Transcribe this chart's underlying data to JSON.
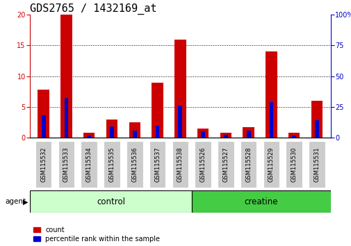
{
  "title": "GDS2765 / 1432169_at",
  "categories": [
    "GSM115532",
    "GSM115533",
    "GSM115534",
    "GSM115535",
    "GSM115536",
    "GSM115537",
    "GSM115538",
    "GSM115526",
    "GSM115527",
    "GSM115528",
    "GSM115529",
    "GSM115530",
    "GSM115531"
  ],
  "count_values": [
    7.8,
    20,
    0.8,
    3.0,
    2.5,
    9.0,
    16.0,
    1.5,
    0.8,
    1.7,
    14.0,
    0.8,
    6.0
  ],
  "percentile_values_scaled": [
    3.6,
    6.5,
    0.4,
    1.8,
    1.2,
    2.0,
    5.2,
    1.0,
    0.5,
    1.2,
    5.8,
    0.4,
    2.8
  ],
  "control_count": 7,
  "creatine_count": 6,
  "control_label": "control",
  "creatine_label": "creatine",
  "agent_label": "agent",
  "bar_width": 0.5,
  "ylim_left": [
    0,
    20
  ],
  "ylim_right": [
    0,
    100
  ],
  "yticks_left": [
    0,
    5,
    10,
    15,
    20
  ],
  "yticks_right": [
    0,
    25,
    50,
    75,
    100
  ],
  "count_color": "#cc0000",
  "percentile_color": "#0000cc",
  "control_bg_color": "#ccffcc",
  "creatine_bg_color": "#44cc44",
  "tick_label_bg": "#cccccc",
  "legend_count_label": "count",
  "legend_percentile_label": "percentile rank within the sample",
  "title_fontsize": 11,
  "tick_fontsize": 7,
  "bar_label_fontsize": 6,
  "group_label_fontsize": 8.5
}
